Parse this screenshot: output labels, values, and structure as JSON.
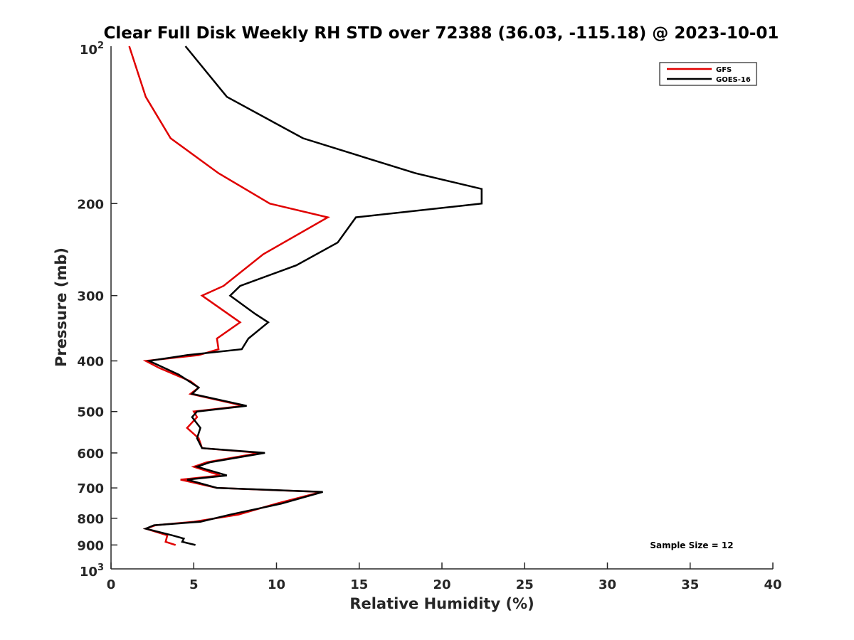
{
  "chart_data": {
    "type": "line",
    "title": "Clear Full Disk Weekly RH STD over 72388 (36.03, -115.18) @ 2023-10-01",
    "xlabel": "Relative Humidity (%)",
    "ylabel": "Pressure (mb)",
    "xlim": [
      0,
      40
    ],
    "ylim": [
      100,
      1000
    ],
    "y_scale": "log",
    "y_reversed": true,
    "x_ticks": [
      0,
      5,
      10,
      15,
      20,
      25,
      30,
      35,
      40
    ],
    "x_tick_labels": [
      "0",
      "5",
      "10",
      "15",
      "20",
      "25",
      "30",
      "35",
      "40"
    ],
    "y_ticks": [
      200,
      300,
      400,
      500,
      600,
      700,
      800,
      900
    ],
    "y_tick_labels": [
      "200",
      "300",
      "400",
      "500",
      "600",
      "700",
      "800",
      "900"
    ],
    "y_limit_labels": {
      "top_base": "10",
      "top_exp": "2",
      "bottom_base": "10",
      "bottom_exp": "3"
    },
    "legend_position": "top-right",
    "grid": false,
    "annotation": "Sample Size = 12",
    "series": [
      {
        "name": "GFS",
        "color": "#e00000",
        "points": [
          [
            1.1,
            100
          ],
          [
            2.1,
            125
          ],
          [
            3.6,
            150
          ],
          [
            6.5,
            175
          ],
          [
            9.6,
            200
          ],
          [
            13.1,
            212.5
          ],
          [
            9.2,
            250
          ],
          [
            6.8,
            287.5
          ],
          [
            5.5,
            300
          ],
          [
            7.8,
            337.5
          ],
          [
            6.4,
            362.5
          ],
          [
            6.5,
            380
          ],
          [
            5.3,
            390
          ],
          [
            2.1,
            400
          ],
          [
            2.9,
            412.5
          ],
          [
            4.8,
            437.5
          ],
          [
            5.3,
            450
          ],
          [
            4.8,
            462.5
          ],
          [
            8.0,
            487.5
          ],
          [
            5.0,
            500
          ],
          [
            5.2,
            512.5
          ],
          [
            4.6,
            537.5
          ],
          [
            5.3,
            562.5
          ],
          [
            5.5,
            587.5
          ],
          [
            9.0,
            600
          ],
          [
            5.8,
            625
          ],
          [
            5.0,
            637.5
          ],
          [
            6.6,
            662.5
          ],
          [
            4.2,
            675
          ],
          [
            6.4,
            700
          ],
          [
            12.7,
            712.5
          ],
          [
            10.0,
            750
          ],
          [
            7.7,
            787.5
          ],
          [
            5.0,
            812.5
          ],
          [
            2.7,
            825
          ],
          [
            2.1,
            837.5
          ],
          [
            3.4,
            862.5
          ],
          [
            3.3,
            887.5
          ],
          [
            3.9,
            900
          ]
        ]
      },
      {
        "name": "GOES-16",
        "color": "#000000",
        "points": [
          [
            4.5,
            100
          ],
          [
            7.0,
            125
          ],
          [
            11.6,
            150
          ],
          [
            18.4,
            175
          ],
          [
            22.4,
            187.5
          ],
          [
            22.4,
            200
          ],
          [
            14.8,
            212.5
          ],
          [
            13.7,
            237.5
          ],
          [
            11.2,
            262.5
          ],
          [
            7.8,
            287.5
          ],
          [
            7.2,
            300
          ],
          [
            8.7,
            325
          ],
          [
            9.5,
            337.5
          ],
          [
            8.3,
            362.5
          ],
          [
            7.9,
            380
          ],
          [
            4.6,
            390
          ],
          [
            2.3,
            400
          ],
          [
            4.1,
            425
          ],
          [
            5.3,
            450
          ],
          [
            4.9,
            462.5
          ],
          [
            8.2,
            487.5
          ],
          [
            5.2,
            500
          ],
          [
            4.9,
            512.5
          ],
          [
            5.4,
            537.5
          ],
          [
            5.2,
            562.5
          ],
          [
            5.5,
            587.5
          ],
          [
            9.3,
            600
          ],
          [
            6.0,
            625
          ],
          [
            5.2,
            637.5
          ],
          [
            7.0,
            662.5
          ],
          [
            4.6,
            675
          ],
          [
            6.4,
            700
          ],
          [
            12.8,
            712.5
          ],
          [
            10.3,
            750
          ],
          [
            7.2,
            787.5
          ],
          [
            5.4,
            812.5
          ],
          [
            2.6,
            825
          ],
          [
            2.1,
            837.5
          ],
          [
            3.7,
            862.5
          ],
          [
            4.4,
            875
          ],
          [
            4.3,
            887.5
          ],
          [
            5.1,
            900
          ]
        ]
      }
    ]
  }
}
